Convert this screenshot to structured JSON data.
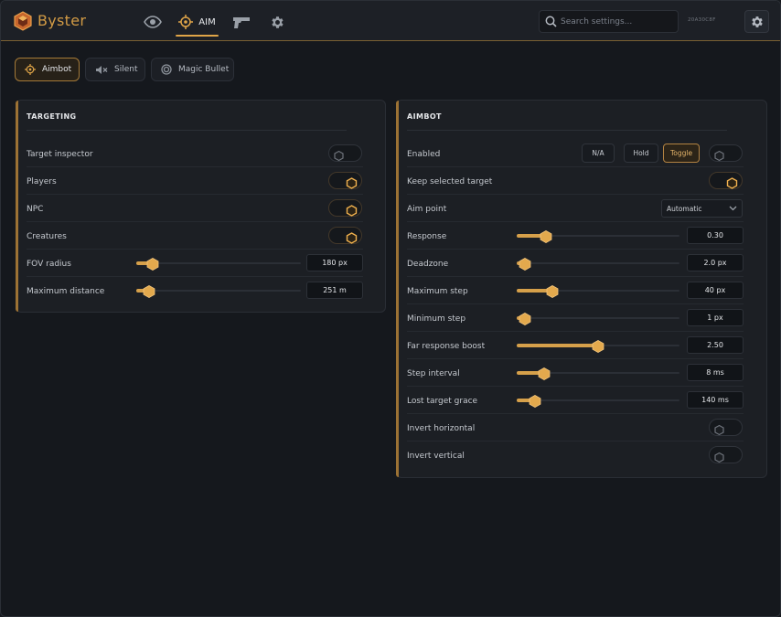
{
  "app": {
    "brand": "Byster",
    "build_id": "20A30C8F"
  },
  "nav": {
    "tabs": [
      {
        "icon": "eye-icon",
        "label": ""
      },
      {
        "icon": "crosshair-icon",
        "label": "AIM",
        "active": true
      },
      {
        "icon": "pistol-icon",
        "label": ""
      },
      {
        "icon": "gear-icon",
        "label": ""
      }
    ]
  },
  "search": {
    "placeholder": "Search settings...",
    "value": ""
  },
  "subtabs": [
    {
      "label": "Aimbot",
      "icon": "crosshair-icon",
      "active": true
    },
    {
      "label": "Silent",
      "icon": "speaker-mute-icon",
      "active": false
    },
    {
      "label": "Magic Bullet",
      "icon": "target-icon",
      "active": false
    }
  ],
  "targeting": {
    "title": "TARGETING",
    "rows": [
      {
        "label": "Target inspector",
        "type": "toggle",
        "on": false
      },
      {
        "label": "Players",
        "type": "toggle",
        "on": true
      },
      {
        "label": "NPC",
        "type": "toggle",
        "on": true
      },
      {
        "label": "Creatures",
        "type": "toggle",
        "on": true
      },
      {
        "label": "FOV radius",
        "type": "slider",
        "value": "180 px",
        "level": 0.1
      },
      {
        "label": "Maximum distance",
        "type": "slider",
        "value": "251 m",
        "level": 0.08
      }
    ]
  },
  "aimbot": {
    "title": "AIMBOT",
    "enabled": {
      "label": "Enabled",
      "modes": [
        "N/A",
        "Hold",
        "Toggle"
      ],
      "active_mode": "Toggle",
      "on": false
    },
    "keep_target": {
      "label": "Keep selected target",
      "on": true
    },
    "aim_point": {
      "label": "Aim point",
      "value": "Automatic"
    },
    "sliders": [
      {
        "label": "Response",
        "value": "0.30",
        "level": 0.18
      },
      {
        "label": "Deadzone",
        "value": "2.0 px",
        "level": 0.05
      },
      {
        "label": "Maximum step",
        "value": "40 px",
        "level": 0.22
      },
      {
        "label": "Minimum step",
        "value": "1 px",
        "level": 0.05
      },
      {
        "label": "Far response boost",
        "value": "2.50",
        "level": 0.5
      },
      {
        "label": "Step interval",
        "value": "8 ms",
        "level": 0.17
      },
      {
        "label": "Lost target grace",
        "value": "140 ms",
        "level": 0.11
      }
    ],
    "invert_h": {
      "label": "Invert horizontal",
      "on": false
    },
    "invert_v": {
      "label": "Invert vertical",
      "on": false
    }
  },
  "colors": {
    "accent": "#d6a04a",
    "background": "#15181d",
    "panel": "#1c1f24"
  }
}
